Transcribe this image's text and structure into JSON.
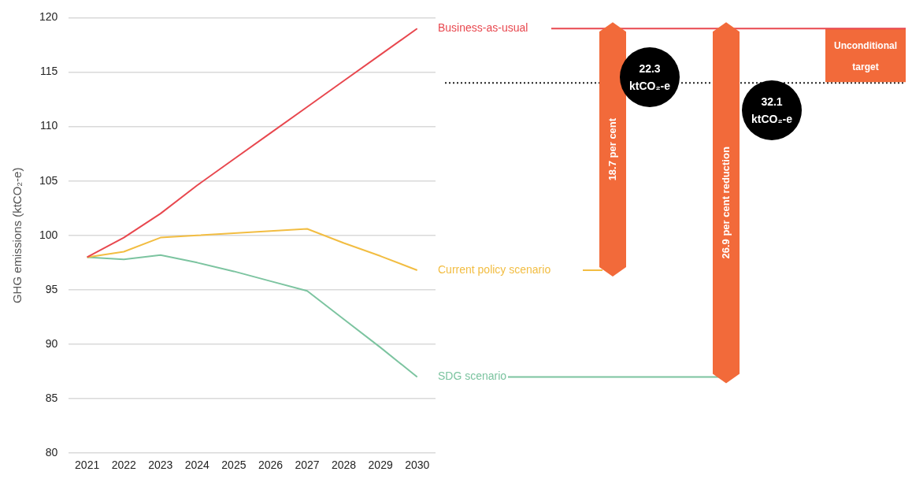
{
  "chart_data": {
    "type": "line",
    "ylabel": "GHG emissions (ktCO₂-e)",
    "categories": [
      "2021",
      "2022",
      "2023",
      "2024",
      "2025",
      "2026",
      "2027",
      "2028",
      "2029",
      "2030"
    ],
    "series": [
      {
        "name": "Business-as-usual",
        "color": "#e8484f",
        "values": [
          98,
          99.8,
          102,
          104.6,
          107,
          109.4,
          111.8,
          114.2,
          116.6,
          119
        ]
      },
      {
        "name": "Current policy scenario",
        "color": "#f2bd42",
        "values": [
          98,
          98.5,
          99.8,
          100,
          100.2,
          100.4,
          100.6,
          99.3,
          98.1,
          96.8
        ]
      },
      {
        "name": "SDG scenario",
        "color": "#7cc4a0",
        "values": [
          98,
          97.8,
          98.2,
          97.5,
          96.7,
          95.8,
          94.9,
          92.3,
          89.7,
          87
        ]
      }
    ],
    "ylim": [
      80,
      120
    ],
    "yticks": [
      80,
      85,
      90,
      95,
      100,
      105,
      110,
      115,
      120
    ],
    "grid": "y",
    "legend": false,
    "marker": "none",
    "line_style": "solid",
    "ref_lines": [
      {
        "axis": "y",
        "value": 114,
        "label": "Unconditional target",
        "color": "#222222",
        "line_style": "dotted"
      }
    ],
    "annotations": [
      "22.3 ktCO₂-e",
      "32.1 ktCO₂-e",
      "18.7 per cent",
      "26.9 per cent reduction"
    ]
  }
}
